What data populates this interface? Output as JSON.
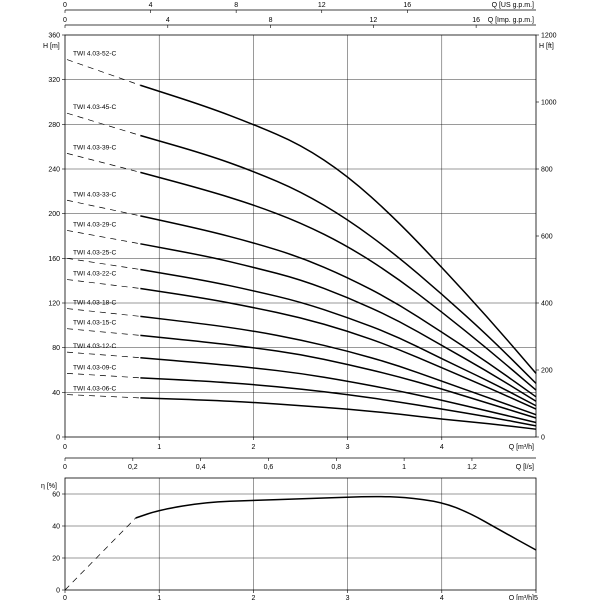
{
  "chart_data": [
    {
      "type": "line",
      "title": "",
      "xlabel": "Q [m³/h]",
      "ylabel": "H [m]",
      "y2label": "H [ft]",
      "xlim": [
        0,
        5
      ],
      "ylim": [
        0,
        360
      ],
      "y2lim": [
        0,
        1200
      ],
      "grid": true,
      "x_ticks": [
        "0",
        "1",
        "2",
        "3",
        "4"
      ],
      "y_ticks": [
        "0",
        "40",
        "80",
        "120",
        "160",
        "200",
        "240",
        "280",
        "320",
        "360"
      ],
      "y2_ticks": [
        "0",
        "200",
        "400",
        "600",
        "800",
        "1000",
        "1200"
      ],
      "top_axes": [
        {
          "label": "Q [US g.p.m.]",
          "ticks": [
            "0",
            "4",
            "8",
            "12",
            "16"
          ],
          "values": [
            0,
            4,
            8,
            12,
            16
          ]
        },
        {
          "label": "Q [Imp. g.p.m.]",
          "ticks": [
            "0",
            "4",
            "8",
            "12",
            "16"
          ],
          "values": [
            0,
            4,
            8,
            12,
            16
          ]
        }
      ],
      "series": [
        {
          "name": "TWI 4.03-52-C",
          "x": [
            0.8,
            1.5,
            2.0,
            2.5,
            3.0,
            3.5,
            4.0,
            4.5,
            5.0
          ],
          "y": [
            315,
            296,
            280,
            262,
            234,
            196,
            152,
            106,
            57
          ],
          "dashed_start": [
            0.0,
            338
          ]
        },
        {
          "name": "TWI 4.03-45-C",
          "x": [
            0.8,
            1.5,
            2.0,
            2.5,
            3.0,
            3.5,
            4.0,
            4.5,
            5.0
          ],
          "y": [
            270,
            253,
            238,
            220,
            195,
            164,
            128,
            90,
            48
          ],
          "dashed_start": [
            0.0,
            290
          ]
        },
        {
          "name": "TWI 4.03-39-C",
          "x": [
            0.8,
            1.5,
            2.0,
            2.5,
            3.0,
            3.5,
            4.0,
            4.5,
            5.0
          ],
          "y": [
            237,
            221,
            208,
            192,
            171,
            144,
            112,
            78,
            42
          ],
          "dashed_start": [
            0.0,
            254
          ]
        },
        {
          "name": "TWI 4.03-33-C",
          "x": [
            0.8,
            1.5,
            2.0,
            2.5,
            3.0,
            3.5,
            4.0,
            4.5,
            5.0
          ],
          "y": [
            198,
            185,
            174,
            161,
            143,
            121,
            94,
            66,
            36
          ],
          "dashed_start": [
            0.0,
            212
          ]
        },
        {
          "name": "TWI 4.03-29-C",
          "x": [
            0.8,
            1.5,
            2.0,
            2.5,
            3.0,
            3.5,
            4.0,
            4.5,
            5.0
          ],
          "y": [
            173,
            162,
            152,
            141,
            125,
            106,
            82,
            58,
            32
          ],
          "dashed_start": [
            0.0,
            185
          ]
        },
        {
          "name": "TWI 4.03-25-C",
          "x": [
            0.8,
            1.5,
            2.0,
            2.5,
            3.0,
            3.5,
            4.0,
            4.5,
            5.0
          ],
          "y": [
            150,
            140,
            131,
            121,
            107,
            91,
            70,
            50,
            28
          ],
          "dashed_start": [
            0.0,
            160
          ]
        },
        {
          "name": "TWI 4.03-22-C",
          "x": [
            0.8,
            1.5,
            2.0,
            2.5,
            3.0,
            3.5,
            4.0,
            4.5,
            5.0
          ],
          "y": [
            133,
            124,
            116,
            107,
            95,
            80,
            62,
            44,
            25
          ],
          "dashed_start": [
            0.0,
            141
          ]
        },
        {
          "name": "TWI 4.03-18-C",
          "x": [
            0.8,
            1.5,
            2.0,
            2.5,
            3.0,
            3.5,
            4.0,
            4.5,
            5.0
          ],
          "y": [
            108,
            101,
            95,
            87,
            77,
            65,
            50,
            35,
            20
          ],
          "dashed_start": [
            0.0,
            115
          ]
        },
        {
          "name": "TWI 4.03-15-C",
          "x": [
            0.8,
            1.5,
            2.0,
            2.5,
            3.0,
            3.5,
            4.0,
            4.5,
            5.0
          ],
          "y": [
            91,
            85,
            80,
            74,
            65,
            55,
            43,
            30,
            17
          ],
          "dashed_start": [
            0.0,
            97
          ]
        },
        {
          "name": "TWI 4.03-12-C",
          "x": [
            0.8,
            1.5,
            2.0,
            2.5,
            3.0,
            3.5,
            4.0,
            4.5,
            5.0
          ],
          "y": [
            71,
            66,
            62,
            57,
            50,
            42,
            33,
            23,
            13
          ],
          "dashed_start": [
            0.0,
            76
          ]
        },
        {
          "name": "TWI 4.03-09-C",
          "x": [
            0.8,
            1.5,
            2.0,
            2.5,
            3.0,
            3.5,
            4.0,
            4.5,
            5.0
          ],
          "y": [
            53,
            50,
            47,
            43,
            38,
            32,
            25,
            18,
            10
          ],
          "dashed_start": [
            0.0,
            57
          ]
        },
        {
          "name": "TWI 4.03-06-C",
          "x": [
            0.8,
            1.5,
            2.0,
            2.5,
            3.0,
            3.5,
            4.0,
            4.5,
            5.0
          ],
          "y": [
            35,
            33,
            31,
            28,
            25,
            21,
            16,
            12,
            7
          ],
          "dashed_start": [
            0.0,
            38
          ]
        }
      ]
    },
    {
      "type": "line",
      "title": "",
      "xlabel": "Q [m³/h]",
      "ylabel": "η [%]",
      "xlim": [
        0,
        5
      ],
      "ylim": [
        0,
        70
      ],
      "grid": true,
      "x_ticks": [
        "0",
        "1",
        "2",
        "3",
        "4",
        "5"
      ],
      "y_ticks": [
        "0",
        "20",
        "40",
        "60"
      ],
      "top_axis": {
        "label": "Q [l/s]",
        "ticks": [
          "0",
          "0,2",
          "0,4",
          "0,6",
          "0,8",
          "1",
          "1,2"
        ],
        "values": [
          0,
          0.2,
          0.4,
          0.6,
          0.8,
          1.0,
          1.2
        ]
      },
      "series": [
        {
          "name": "",
          "x": [
            0.75,
            1.0,
            1.5,
            2.0,
            2.5,
            3.0,
            3.3,
            3.6,
            4.0,
            4.3,
            4.6,
            5.0
          ],
          "y": [
            45,
            50,
            55,
            56,
            57,
            58,
            58.5,
            58,
            55,
            48,
            38,
            25
          ],
          "dashed_start": [
            [
              0,
              0
            ],
            [
              0.5,
              30
            ],
            [
              0.75,
              45
            ]
          ]
        }
      ]
    }
  ]
}
